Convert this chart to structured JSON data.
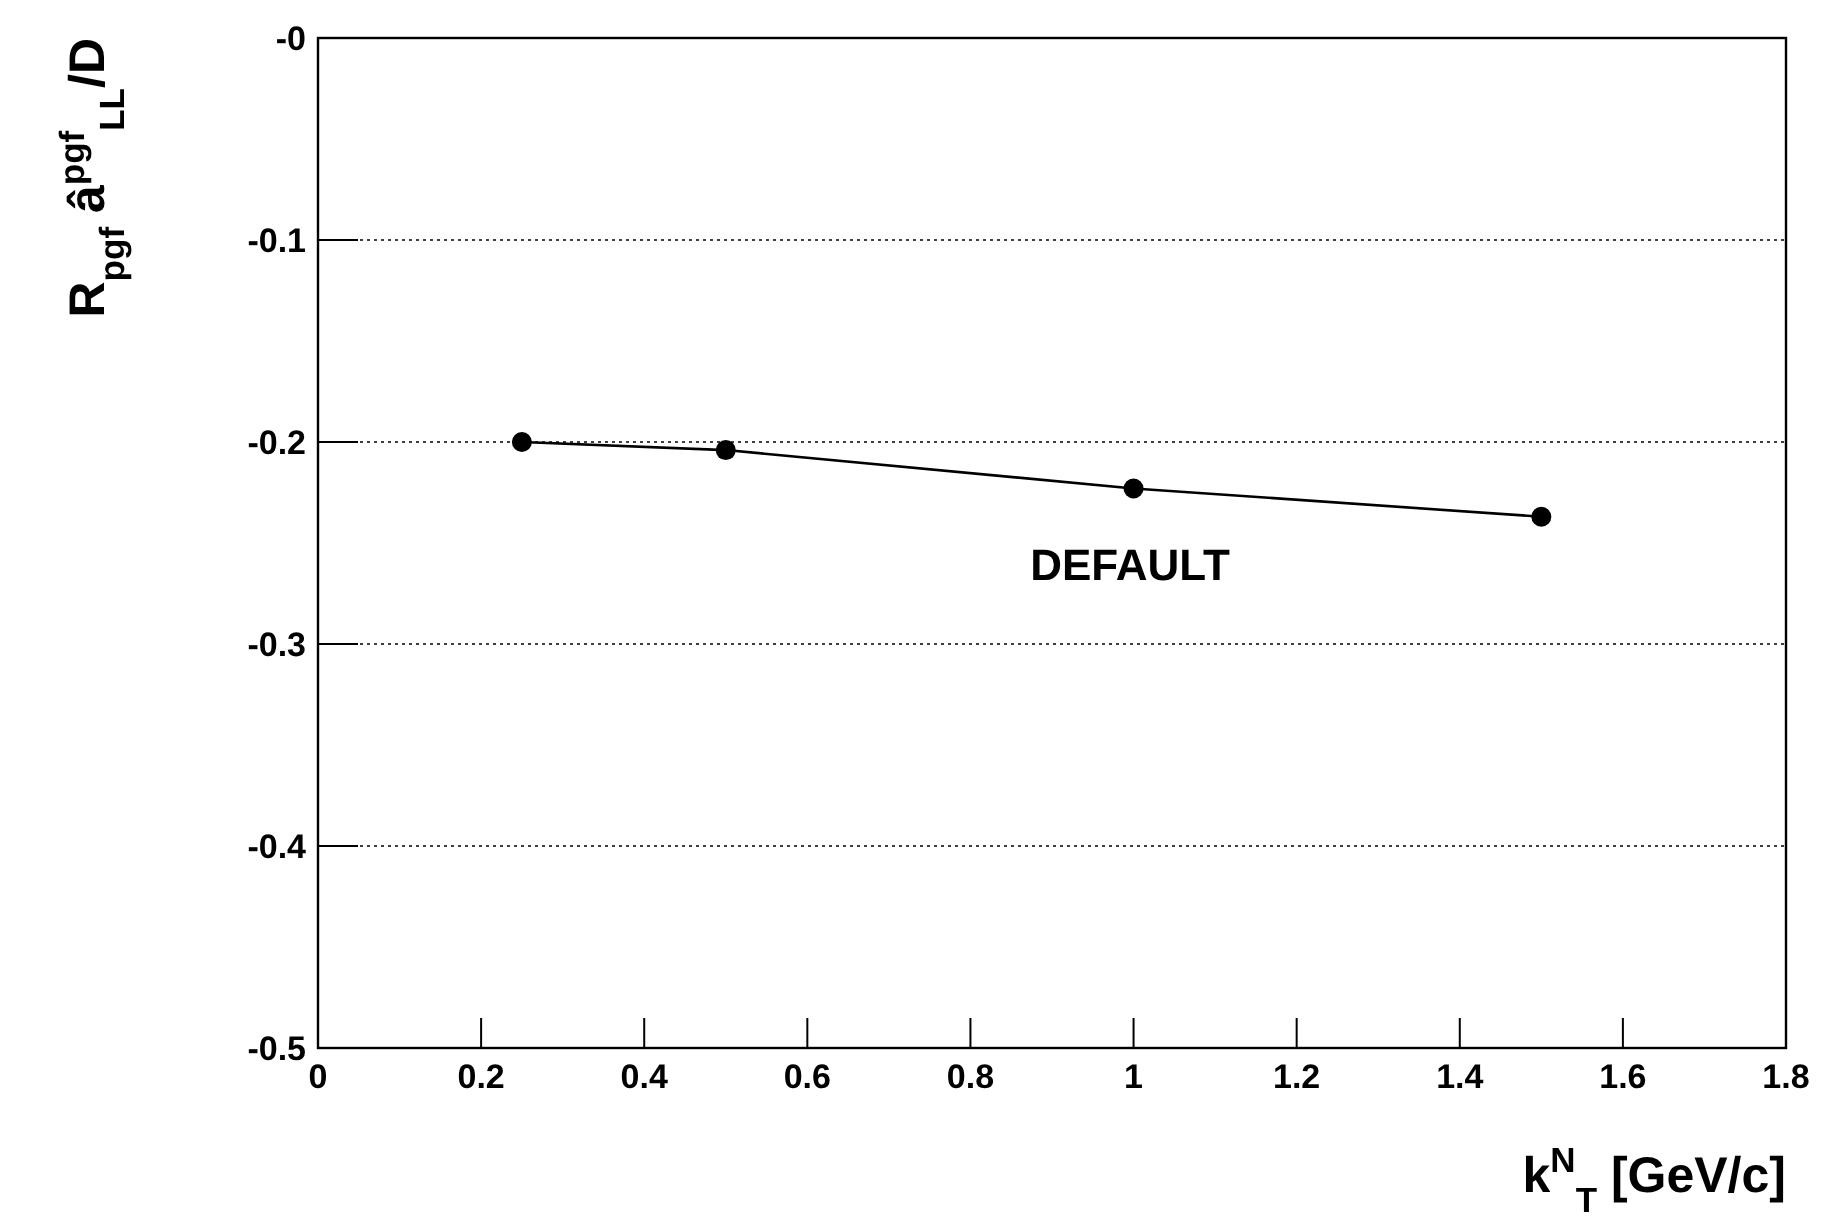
{
  "chart_data": {
    "type": "line",
    "xlabel": "k$^{N}$$_{T}$ [GeV/c]",
    "ylabel": "R$_{pgf}$ â$^{pgf}$$_{LL}$/D",
    "x": [
      0.25,
      0.5,
      1,
      1.5
    ],
    "series": [
      {
        "color": "#000000",
        "values": [
          -0.2,
          -0.204,
          -0.223,
          -0.237
        ]
      }
    ],
    "xlim": [
      0,
      1.8
    ],
    "xticks": [
      0,
      0.2,
      0.4,
      0.6,
      0.8,
      1,
      1.2,
      1.4,
      1.6,
      1.8
    ],
    "ylim": [
      -0.5,
      0
    ],
    "yticks": [
      -0.5,
      -0.4,
      -0.3,
      -0.2,
      -0.1,
      {
        "value": 0,
        "label": "-0"
      }
    ],
    "grid": "y",
    "marker": "circle",
    "line_style": "solid",
    "annotations": [
      "DEFAULT"
    ]
  }
}
